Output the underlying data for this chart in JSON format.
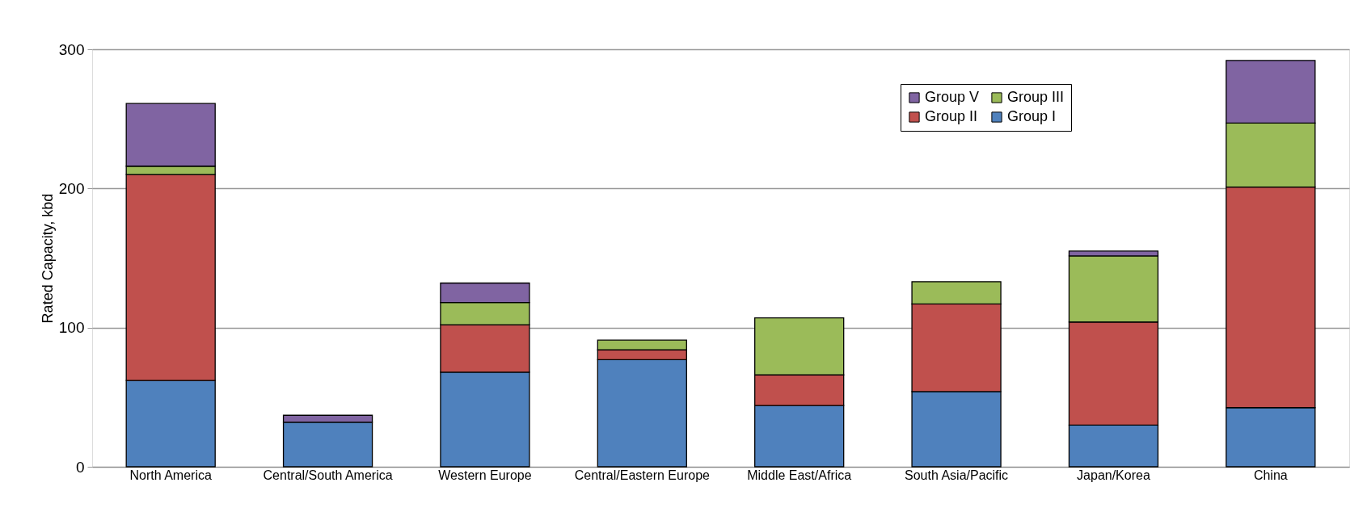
{
  "chart_data": {
    "type": "bar",
    "stacked": true,
    "ylabel": "Rated Capacity, kbd",
    "categories": [
      "North America",
      "Central/South America",
      "Western Europe",
      "Central/Eastern Europe",
      "Middle East/Africa",
      "South Asia/Pacific",
      "Japan/Korea",
      "China"
    ],
    "series": [
      {
        "name": "Group I",
        "color": "#4f81bd",
        "values": [
          62,
          32,
          68,
          77,
          44,
          54,
          30,
          42.5
        ]
      },
      {
        "name": "Group II",
        "color": "#c0504d",
        "values": [
          148,
          null,
          34,
          7,
          22,
          63,
          74,
          158.5
        ]
      },
      {
        "name": "Group III",
        "color": "#9bbb59",
        "values": [
          6,
          null,
          16,
          7,
          41,
          16,
          47.5,
          46
        ]
      },
      {
        "name": "Group V",
        "color": "#8064a2",
        "values": [
          45,
          5,
          14,
          null,
          null,
          null,
          3.5,
          45
        ]
      }
    ],
    "ylim": [
      0,
      300
    ],
    "yticks": [
      0,
      100,
      200,
      300
    ],
    "grid": "y",
    "legend": "top right"
  }
}
